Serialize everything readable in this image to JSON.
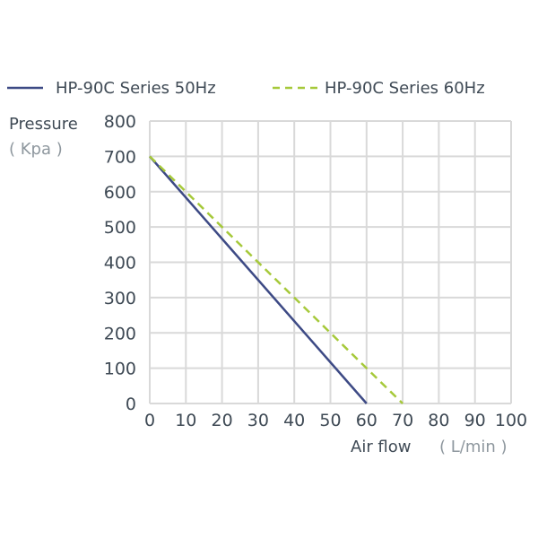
{
  "chart_data": {
    "type": "line",
    "xlabel": "Air flow",
    "xunit": "( L/min )",
    "ylabel": "Pressure",
    "yunit": "( Kpa )",
    "xlim": [
      0,
      100
    ],
    "ylim": [
      0,
      800
    ],
    "x_ticks": [
      0,
      10,
      20,
      30,
      40,
      50,
      60,
      70,
      80,
      90,
      100
    ],
    "y_ticks": [
      0,
      100,
      200,
      300,
      400,
      500,
      600,
      700,
      800
    ],
    "grid": true,
    "legend_position": "top",
    "series": [
      {
        "name": "HP-90C  Series 50Hz",
        "style": "solid",
        "color": "#3d4a85",
        "points": [
          [
            0,
            700
          ],
          [
            60,
            0
          ]
        ]
      },
      {
        "name": "HP-90C  Series 60Hz",
        "style": "dashed",
        "color": "#a6c93a",
        "points": [
          [
            0,
            700
          ],
          [
            70,
            0
          ]
        ]
      }
    ]
  }
}
